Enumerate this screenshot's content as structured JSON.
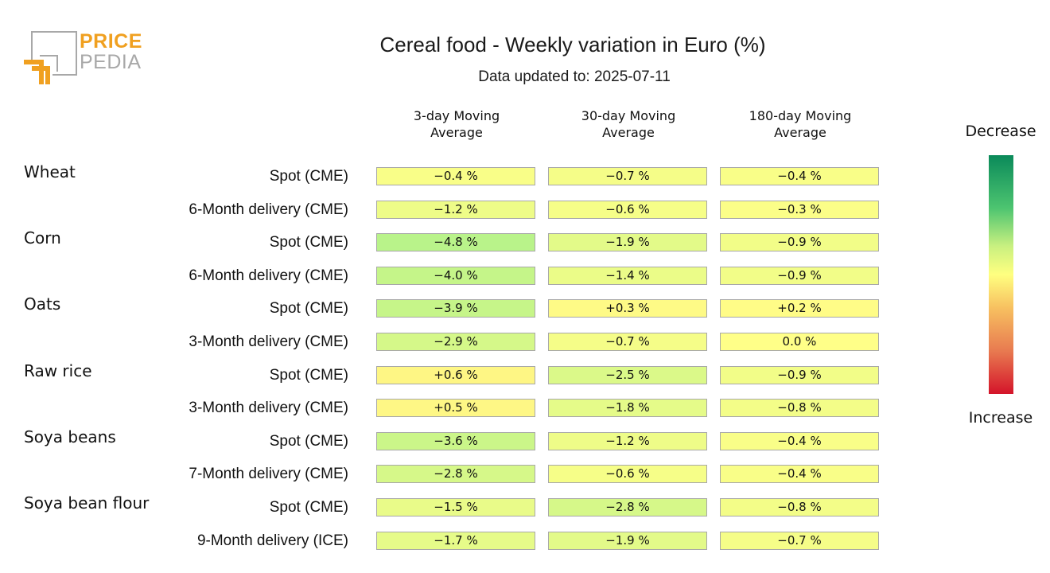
{
  "logo": {
    "line1": "PRICE",
    "line2": "PEDIA"
  },
  "title": "Cereal food - Weekly variation in Euro (%)",
  "subtitle": "Data updated to: 2025-07-11",
  "legend": {
    "top": "Decrease",
    "bottom": "Increase"
  },
  "colors": {
    "decrease_strong": "#0a8a5a",
    "neutral": "#ffff80",
    "increase_strong": "#d4142a"
  },
  "chart_data": {
    "type": "table",
    "title": "Cereal food - Weekly variation in Euro (%)",
    "columns": [
      "3-day Moving\nAverage",
      "30-day Moving\nAverage",
      "180-day Moving\nAverage"
    ],
    "unit": "%",
    "groups": [
      {
        "name": "Wheat",
        "rows": [
          {
            "label": "Spot (CME)",
            "values": [
              -0.4,
              -0.7,
              -0.4
            ],
            "display": [
              "−0.4 %",
              "−0.7 %",
              "−0.4 %"
            ]
          },
          {
            "label": "6-Month delivery (CME)",
            "values": [
              -1.2,
              -0.6,
              -0.3
            ],
            "display": [
              "−1.2 %",
              "−0.6 %",
              "−0.3 %"
            ]
          }
        ]
      },
      {
        "name": "Corn",
        "rows": [
          {
            "label": "Spot (CME)",
            "values": [
              -4.8,
              -1.9,
              -0.9
            ],
            "display": [
              "−4.8 %",
              "−1.9 %",
              "−0.9 %"
            ]
          },
          {
            "label": "6-Month delivery (CME)",
            "values": [
              -4.0,
              -1.4,
              -0.9
            ],
            "display": [
              "−4.0 %",
              "−1.4 %",
              "−0.9 %"
            ]
          }
        ]
      },
      {
        "name": "Oats",
        "rows": [
          {
            "label": "Spot (CME)",
            "values": [
              -3.9,
              0.3,
              0.2
            ],
            "display": [
              "−3.9 %",
              "+0.3 %",
              "+0.2 %"
            ]
          },
          {
            "label": "3-Month delivery (CME)",
            "values": [
              -2.9,
              -0.7,
              0.0
            ],
            "display": [
              "−2.9 %",
              "−0.7 %",
              "0.0 %"
            ]
          }
        ]
      },
      {
        "name": "Raw rice",
        "rows": [
          {
            "label": "Spot (CME)",
            "values": [
              0.6,
              -2.5,
              -0.9
            ],
            "display": [
              "+0.6 %",
              "−2.5 %",
              "−0.9 %"
            ]
          },
          {
            "label": "3-Month delivery (CME)",
            "values": [
              0.5,
              -1.8,
              -0.8
            ],
            "display": [
              "+0.5 %",
              "−1.8 %",
              "−0.8 %"
            ]
          }
        ]
      },
      {
        "name": "Soya beans",
        "rows": [
          {
            "label": "Spot (CME)",
            "values": [
              -3.6,
              -1.2,
              -0.4
            ],
            "display": [
              "−3.6 %",
              "−1.2 %",
              "−0.4 %"
            ]
          },
          {
            "label": "7-Month delivery (CME)",
            "values": [
              -2.8,
              -0.6,
              -0.4
            ],
            "display": [
              "−2.8 %",
              "−0.6 %",
              "−0.4 %"
            ]
          }
        ]
      },
      {
        "name": "Soya bean flour",
        "rows": [
          {
            "label": "Spot (CME)",
            "values": [
              -1.5,
              -2.8,
              -0.8
            ],
            "display": [
              "−1.5 %",
              "−2.8 %",
              "−0.8 %"
            ]
          },
          {
            "label": "9-Month delivery (ICE)",
            "values": [
              -1.7,
              -1.9,
              -0.7
            ],
            "display": [
              "−1.7 %",
              "−1.9 %",
              "−0.7 %"
            ]
          }
        ]
      }
    ]
  }
}
